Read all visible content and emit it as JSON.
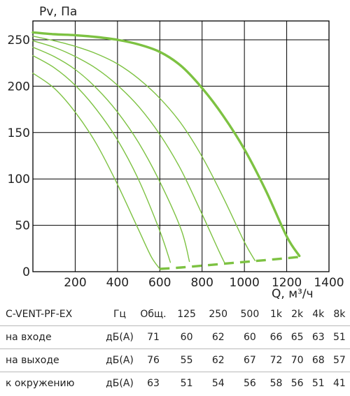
{
  "chart_data": {
    "type": "line",
    "title": "",
    "xlabel": "Q, м³/ч",
    "ylabel": "Pv, Па",
    "xlim": [
      0,
      1400
    ],
    "ylim": [
      0,
      260
    ],
    "xticks": [
      200,
      400,
      600,
      800,
      1000,
      1200,
      1400
    ],
    "yticks": [
      0,
      50,
      100,
      150,
      200,
      250
    ],
    "grid": true,
    "series": [
      {
        "style": "thick",
        "color": "#7dc242",
        "x": [
          0,
          100,
          200,
          300,
          400,
          500,
          600,
          700,
          800,
          900,
          1000,
          1100,
          1200,
          1260
        ],
        "y": [
          258,
          256,
          255,
          253,
          250,
          245,
          237,
          222,
          198,
          168,
          132,
          88,
          38,
          17
        ]
      },
      {
        "style": "thin",
        "color": "#7dc242",
        "x": [
          0,
          100,
          200,
          300,
          400,
          500,
          600,
          700,
          800,
          900,
          1000,
          1050
        ],
        "y": [
          254,
          249,
          243,
          235,
          224,
          208,
          187,
          160,
          124,
          80,
          32,
          12
        ]
      },
      {
        "style": "thin",
        "color": "#7dc242",
        "x": [
          0,
          100,
          200,
          300,
          400,
          500,
          600,
          700,
          800,
          880,
          910
        ],
        "y": [
          249,
          242,
          232,
          219,
          201,
          178,
          148,
          110,
          62,
          22,
          8
        ]
      },
      {
        "style": "thin",
        "color": "#7dc242",
        "x": [
          0,
          100,
          200,
          300,
          400,
          500,
          600,
          700,
          740
        ],
        "y": [
          242,
          232,
          218,
          198,
          172,
          139,
          97,
          46,
          11
        ]
      },
      {
        "style": "thin",
        "color": "#7dc242",
        "x": [
          0,
          100,
          200,
          300,
          400,
          500,
          600,
          650
        ],
        "y": [
          233,
          220,
          201,
          175,
          142,
          99,
          44,
          10
        ]
      },
      {
        "style": "thin",
        "color": "#7dc242",
        "x": [
          0,
          100,
          200,
          300,
          400,
          500,
          560,
          600
        ],
        "y": [
          214,
          198,
          172,
          138,
          94,
          45,
          16,
          3
        ]
      },
      {
        "style": "dashed",
        "color": "#7dc242",
        "x": [
          600,
          700,
          800,
          900,
          1000,
          1100,
          1200,
          1260
        ],
        "y": [
          3,
          4.5,
          6.5,
          8.5,
          10.5,
          12.5,
          14.5,
          16
        ]
      }
    ]
  },
  "noise_table": {
    "headers": [
      "C-VENT-PF-EX",
      "Гц",
      "Общ.",
      "125",
      "250",
      "500",
      "1k",
      "2k",
      "4k",
      "8k"
    ],
    "rows": [
      {
        "label": "на входе",
        "unit": "дБ(А)",
        "values": [
          "71",
          "60",
          "62",
          "60",
          "66",
          "65",
          "63",
          "51"
        ]
      },
      {
        "label": "на выходе",
        "unit": "дБ(А)",
        "values": [
          "76",
          "55",
          "62",
          "67",
          "72",
          "70",
          "68",
          "57"
        ]
      },
      {
        "label": "к окружению",
        "unit": "дБ(А)",
        "values": [
          "63",
          "51",
          "54",
          "56",
          "58",
          "56",
          "51",
          "41"
        ]
      }
    ]
  }
}
